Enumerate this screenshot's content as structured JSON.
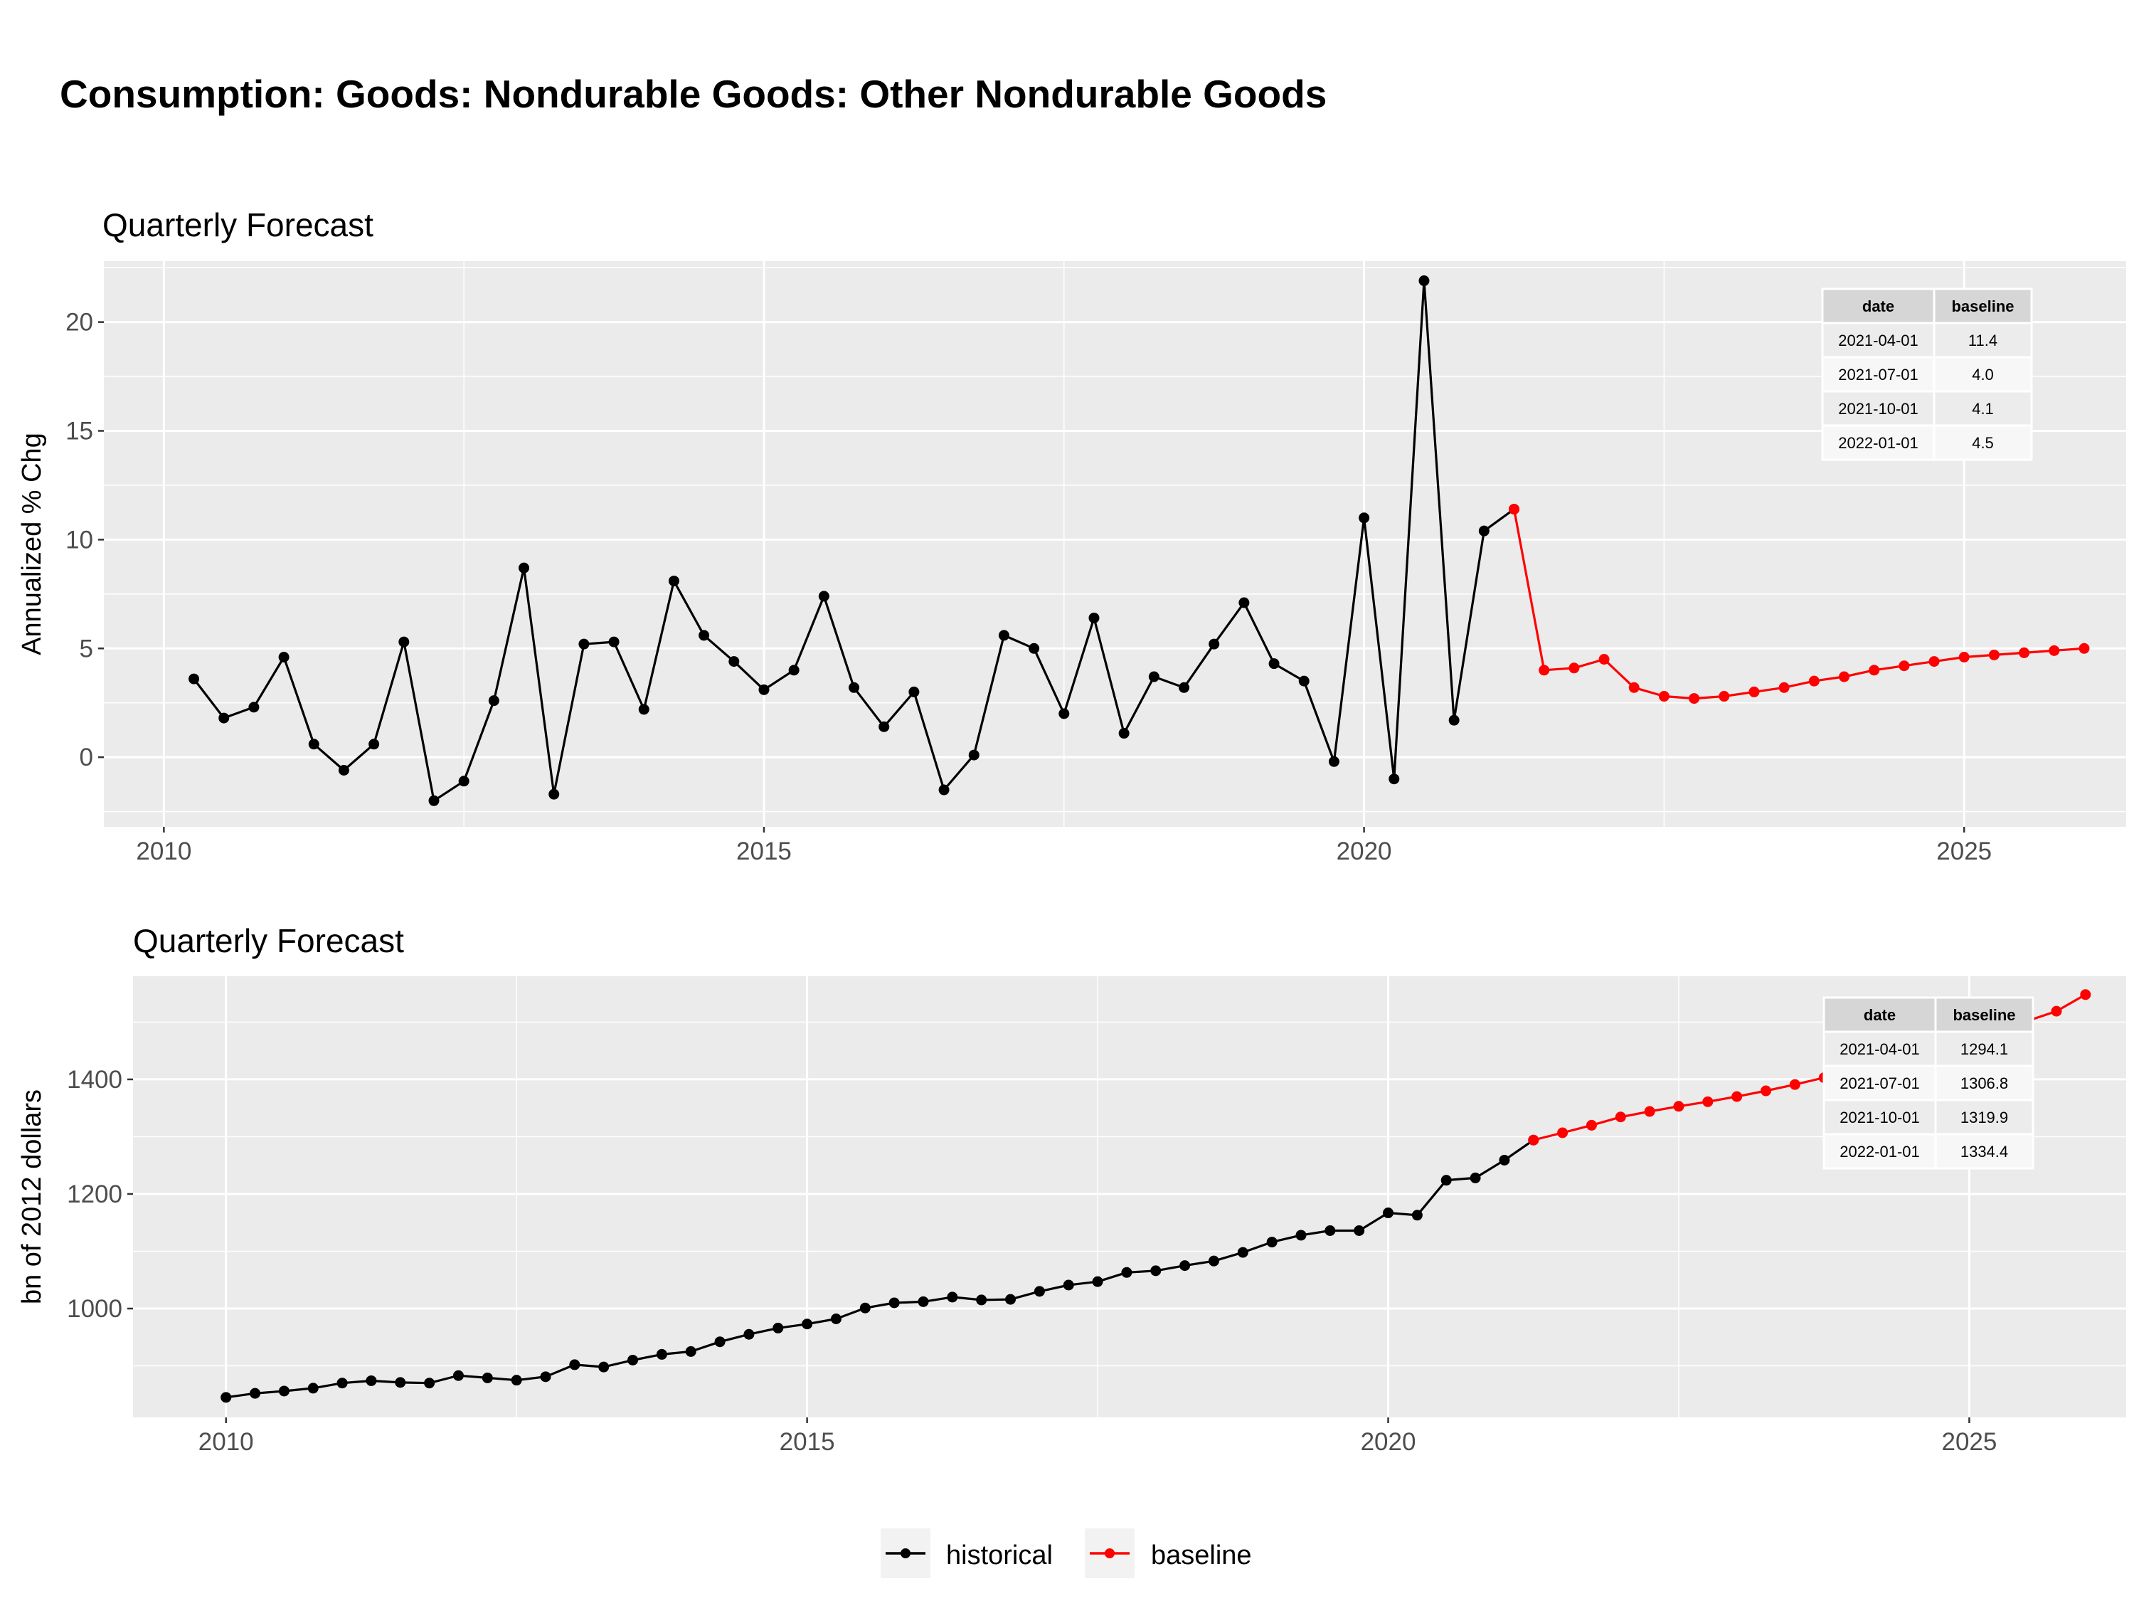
{
  "title": "Consumption: Goods: Nondurable Goods: Other Nondurable Goods",
  "colors": {
    "historical": "#000000",
    "baseline": "#ff0000",
    "panel": "#ebebeb",
    "grid": "#ffffff"
  },
  "legend": {
    "historical": "historical",
    "baseline": "baseline"
  },
  "chart_data": [
    {
      "type": "line",
      "subtitle": "Quarterly Forecast",
      "ylabel": "Annualized % Chg",
      "xlabel": "",
      "xlim": [
        2009.5,
        2026.35
      ],
      "ylim": [
        -3.2,
        22.8
      ],
      "x_ticks": [
        2010,
        2015,
        2020,
        2025
      ],
      "y_ticks": [
        0,
        5,
        10,
        15,
        20
      ],
      "grid": true,
      "series": [
        {
          "name": "historical",
          "x": [
            2010.25,
            2010.5,
            2010.75,
            2011.0,
            2011.25,
            2011.5,
            2011.75,
            2012.0,
            2012.25,
            2012.5,
            2012.75,
            2013.0,
            2013.25,
            2013.5,
            2013.75,
            2014.0,
            2014.25,
            2014.5,
            2014.75,
            2015.0,
            2015.25,
            2015.5,
            2015.75,
            2016.0,
            2016.25,
            2016.5,
            2016.75,
            2017.0,
            2017.25,
            2017.5,
            2017.75,
            2018.0,
            2018.25,
            2018.5,
            2018.75,
            2019.0,
            2019.25,
            2019.5,
            2019.75,
            2020.0,
            2020.25,
            2020.5,
            2020.75,
            2021.0,
            2021.25
          ],
          "values": [
            3.6,
            1.8,
            2.3,
            4.6,
            0.6,
            -0.6,
            0.6,
            5.3,
            -2.0,
            -1.1,
            2.6,
            8.7,
            -1.7,
            5.2,
            5.3,
            2.2,
            8.1,
            5.6,
            4.4,
            3.1,
            4.0,
            7.4,
            3.2,
            1.4,
            3.0,
            -1.5,
            0.1,
            5.6,
            5.0,
            2.0,
            6.4,
            1.1,
            3.7,
            3.2,
            5.2,
            7.1,
            4.3,
            3.5,
            -0.2,
            11.0,
            -1.0,
            21.9,
            1.7,
            10.4,
            11.4
          ]
        },
        {
          "name": "baseline",
          "x": [
            2021.25,
            2021.5,
            2021.75,
            2022.0,
            2022.25,
            2022.5,
            2022.75,
            2023.0,
            2023.25,
            2023.5,
            2023.75,
            2024.0,
            2024.25,
            2024.5,
            2024.75,
            2025.0,
            2025.25,
            2025.5,
            2025.75,
            2026.0
          ],
          "values": [
            11.4,
            4.0,
            4.1,
            4.5,
            3.2,
            2.8,
            2.7,
            2.8,
            3.0,
            3.2,
            3.5,
            3.7,
            4.0,
            4.2,
            4.4,
            4.6,
            4.7,
            4.8,
            4.9,
            5.0
          ]
        }
      ],
      "table": {
        "columns": [
          "date",
          "baseline"
        ],
        "rows": [
          [
            "2021-04-01",
            "11.4"
          ],
          [
            "2021-07-01",
            "4.0"
          ],
          [
            "2021-10-01",
            "4.1"
          ],
          [
            "2022-01-01",
            "4.5"
          ]
        ]
      }
    },
    {
      "type": "line",
      "subtitle": "Quarterly Forecast",
      "ylabel": "bn of 2012 dollars",
      "xlabel": "",
      "xlim": [
        2009.2,
        2026.35
      ],
      "ylim": [
        810,
        1580
      ],
      "x_ticks": [
        2010,
        2015,
        2020,
        2025
      ],
      "y_ticks": [
        1000,
        1200,
        1400
      ],
      "grid": true,
      "series": [
        {
          "name": "historical",
          "x": [
            2010.0,
            2010.25,
            2010.5,
            2010.75,
            2011.0,
            2011.25,
            2011.5,
            2011.75,
            2012.0,
            2012.25,
            2012.5,
            2012.75,
            2013.0,
            2013.25,
            2013.5,
            2013.75,
            2014.0,
            2014.25,
            2014.5,
            2014.75,
            2015.0,
            2015.25,
            2015.5,
            2015.75,
            2016.0,
            2016.25,
            2016.5,
            2016.75,
            2017.0,
            2017.25,
            2017.5,
            2017.75,
            2018.0,
            2018.25,
            2018.5,
            2018.75,
            2019.0,
            2019.25,
            2019.5,
            2019.75,
            2020.0,
            2020.25,
            2020.5,
            2020.75,
            2021.0,
            2021.25
          ],
          "values": [
            845,
            852,
            856,
            861,
            870,
            874,
            871,
            870,
            883,
            879,
            875,
            881,
            902,
            898,
            910,
            920,
            925,
            942,
            955,
            966,
            973,
            982,
            1001,
            1010,
            1012,
            1020,
            1015,
            1016,
            1030,
            1041,
            1047,
            1063,
            1066,
            1075,
            1083,
            1098,
            1116,
            1128,
            1136,
            1136,
            1167,
            1163,
            1224,
            1228,
            1259,
            1294.1
          ]
        },
        {
          "name": "baseline",
          "x": [
            2021.25,
            2021.5,
            2021.75,
            2022.0,
            2022.25,
            2022.5,
            2022.75,
            2023.0,
            2023.25,
            2023.5,
            2023.75,
            2024.0,
            2024.25,
            2024.5,
            2024.75,
            2025.0,
            2025.25,
            2025.5,
            2025.75,
            2026.0
          ],
          "values": [
            1294.1,
            1306.8,
            1319.9,
            1334.4,
            1344,
            1353,
            1361,
            1370,
            1380,
            1391,
            1403,
            1415,
            1428,
            1441,
            1455,
            1470,
            1486,
            1502,
            1519,
            1548
          ]
        }
      ],
      "table": {
        "columns": [
          "date",
          "baseline"
        ],
        "rows": [
          [
            "2021-04-01",
            "1294.1"
          ],
          [
            "2021-07-01",
            "1306.8"
          ],
          [
            "2021-10-01",
            "1319.9"
          ],
          [
            "2022-01-01",
            "1334.4"
          ]
        ]
      }
    }
  ]
}
